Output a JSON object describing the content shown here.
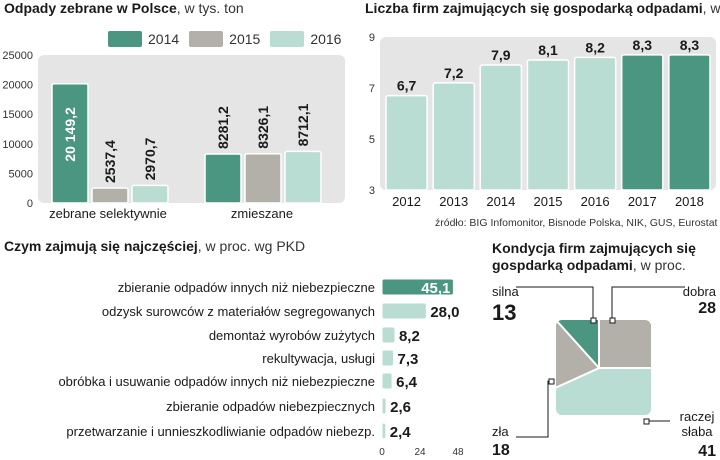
{
  "colors": {
    "s2014": "#4a9680",
    "s2015": "#b3b0aa",
    "s2016": "#b9ddd3",
    "panel_bg": "#e5e5e5",
    "dark": "#1a1a1a"
  },
  "chart_data": [
    {
      "type": "bar",
      "title": "Odpady zebrane w Polsce",
      "subtitle": ", w tys. ton",
      "categories": [
        "zebrane selektywnie",
        "zmieszane"
      ],
      "series": [
        {
          "name": "2014",
          "values": [
            20149.2,
            8281.2
          ],
          "labels": [
            "20 149,2",
            "8281,2"
          ]
        },
        {
          "name": "2015",
          "values": [
            2537.4,
            8326.1
          ],
          "labels": [
            "2537,4",
            "8326,1"
          ]
        },
        {
          "name": "2016",
          "values": [
            2970.7,
            8712.1
          ],
          "labels": [
            "2970,7",
            "8712,1"
          ]
        }
      ],
      "ylim": [
        0,
        25000
      ],
      "yticks": [
        "0",
        "5000",
        "10000",
        "15000",
        "20000",
        "25000"
      ],
      "legend": "top"
    },
    {
      "type": "bar",
      "title": "Liczba firm zajmujących się gospodarką odpadami",
      "subtitle": ", w tys.",
      "categories": [
        "2012",
        "2013",
        "2014",
        "2015",
        "2016",
        "2017",
        "2018"
      ],
      "values": [
        6.7,
        7.2,
        7.9,
        8.1,
        8.2,
        8.3,
        8.3
      ],
      "labels": [
        "6,7",
        "7,2",
        "7,9",
        "8,1",
        "8,2",
        "8,3",
        "8,3"
      ],
      "highlight": [
        false,
        false,
        false,
        false,
        false,
        true,
        true
      ],
      "ylim": [
        3,
        9
      ],
      "yticks": [
        "3",
        "5",
        "7",
        "9"
      ]
    },
    {
      "type": "bar",
      "orientation": "horizontal",
      "title": "Czym zajmują się najczęściej",
      "subtitle": ", w proc. wg PKD",
      "categories": [
        "zbieranie odpadów innych niż niebezpieczne",
        "odzysk surowców z materiałów segregowanych",
        "demontaż wyrobów zużytych",
        "rekultywacja, usługi",
        "obróbka i usuwanie odpadów innych niż niebezpieczne",
        "zbieranie odpadów niebezpiecznych",
        "przetwarzanie i unnieszkodliwianie odpadów niebezp."
      ],
      "values": [
        45.1,
        28.0,
        8.2,
        7.3,
        6.4,
        2.6,
        2.4
      ],
      "labels": [
        "45,1",
        "28,0",
        "8,2",
        "7,3",
        "6,4",
        "2,6",
        "2,4"
      ],
      "xlim": [
        0,
        48
      ],
      "xticks": [
        "0",
        "24",
        "48"
      ]
    },
    {
      "type": "pie",
      "title": "Kondycja firm zajmujących się gospdarką odpadami",
      "subtitle": ", w proc.",
      "slices": [
        {
          "label": "silna",
          "value": 13,
          "value_label": "13"
        },
        {
          "label": "dobra",
          "value": 28,
          "value_label": "28"
        },
        {
          "label": "raczej słaba",
          "value": 41,
          "value_label": "41"
        },
        {
          "label": "zła",
          "value": 18,
          "value_label": "18"
        }
      ]
    }
  ],
  "source": "źródło: BIG Infomonitor, Bisnode Polska, NIK, GUS, Eurostat"
}
